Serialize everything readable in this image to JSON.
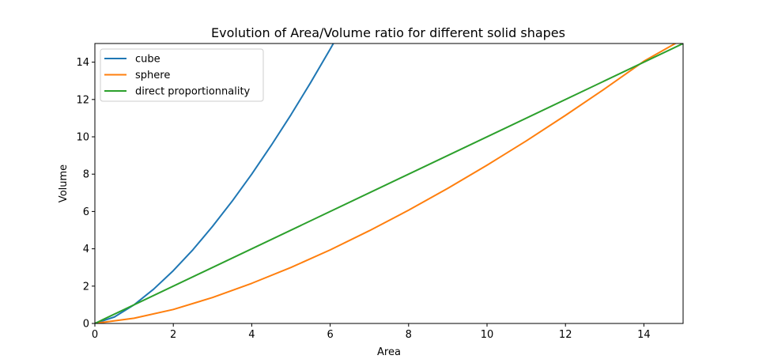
{
  "chart_data": {
    "type": "line",
    "title": "Evolution of Area/Volume ratio for different solid shapes",
    "xlabel": "Area",
    "ylabel": "Volume",
    "xlim": [
      0,
      15
    ],
    "ylim": [
      0,
      15
    ],
    "xticks": [
      "0",
      "2",
      "4",
      "6",
      "8",
      "10",
      "12",
      "14"
    ],
    "yticks": [
      "0",
      "2",
      "4",
      "6",
      "8",
      "10",
      "12",
      "14"
    ],
    "grid": false,
    "legend_position": "top-left",
    "series": [
      {
        "name": "cube",
        "color": "#1f77b4",
        "x": [
          0,
          0.5,
          1,
          1.5,
          2,
          2.5,
          3,
          3.5,
          4,
          4.5,
          5,
          5.5,
          6,
          6.1
        ],
        "y": [
          0,
          0.35,
          1.0,
          1.84,
          2.83,
          3.95,
          5.2,
          6.55,
          8.0,
          9.55,
          11.18,
          12.9,
          14.7,
          15.07
        ]
      },
      {
        "name": "sphere",
        "color": "#ff7f0e",
        "x": [
          0,
          1,
          2,
          3,
          4,
          5,
          6,
          7,
          8,
          9,
          10,
          11,
          12,
          13,
          14,
          14.8
        ],
        "y": [
          0,
          0.28,
          0.75,
          1.39,
          2.15,
          3.0,
          3.94,
          4.97,
          6.07,
          7.24,
          8.48,
          9.78,
          11.15,
          12.57,
          14.05,
          15.0
        ]
      },
      {
        "name": "direct proportionnality",
        "color": "#2ca02c",
        "x": [
          0,
          15
        ],
        "y": [
          0,
          15
        ]
      }
    ]
  }
}
